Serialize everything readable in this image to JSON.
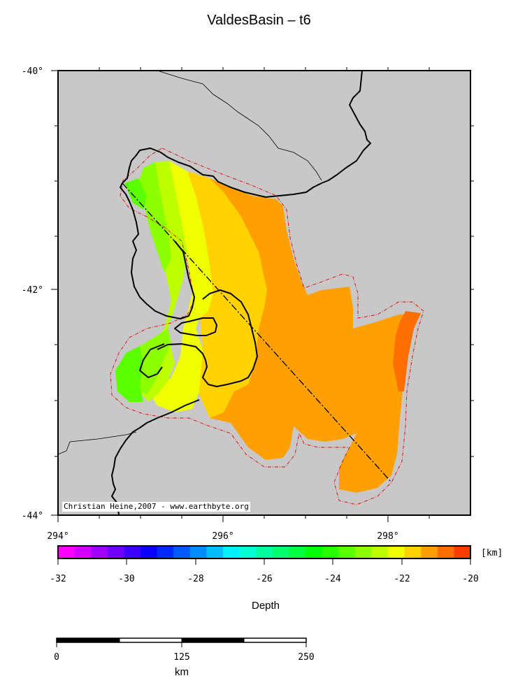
{
  "title": "ValdesBasin – t6",
  "map": {
    "lat_labels": [
      "-40°",
      "-42°",
      "-44°"
    ],
    "lon_labels": [
      "294°",
      "296°",
      "298°"
    ],
    "credit": "Christian Heine,2007 - www.earthbyte.org",
    "background_color": "#c8c8c8",
    "extent": {
      "lon_min": 294,
      "lon_max": 299,
      "lat_min": -44,
      "lat_max": -40
    }
  },
  "colorbar": {
    "ticks": [
      "-32",
      "-30",
      "-28",
      "-26",
      "-24",
      "-22",
      "-20"
    ],
    "unit": "[km]",
    "label": "Depth",
    "range": [
      -32,
      -20
    ],
    "colors": [
      "#ff00ff",
      "#d200ff",
      "#a000ff",
      "#6e00ff",
      "#3c00ff",
      "#0a00ff",
      "#0028ff",
      "#005aff",
      "#008cff",
      "#00beff",
      "#00f0ff",
      "#00ffd2",
      "#00ffa0",
      "#00ff6e",
      "#00ff3c",
      "#00ff0a",
      "#28ff00",
      "#5aff00",
      "#8cff00",
      "#beff00",
      "#f0ff00",
      "#ffd200",
      "#ffa000",
      "#ff6e00",
      "#ff3c00"
    ]
  },
  "scalebar": {
    "ticks": [
      "0",
      "125",
      "250"
    ],
    "unit": "km"
  }
}
